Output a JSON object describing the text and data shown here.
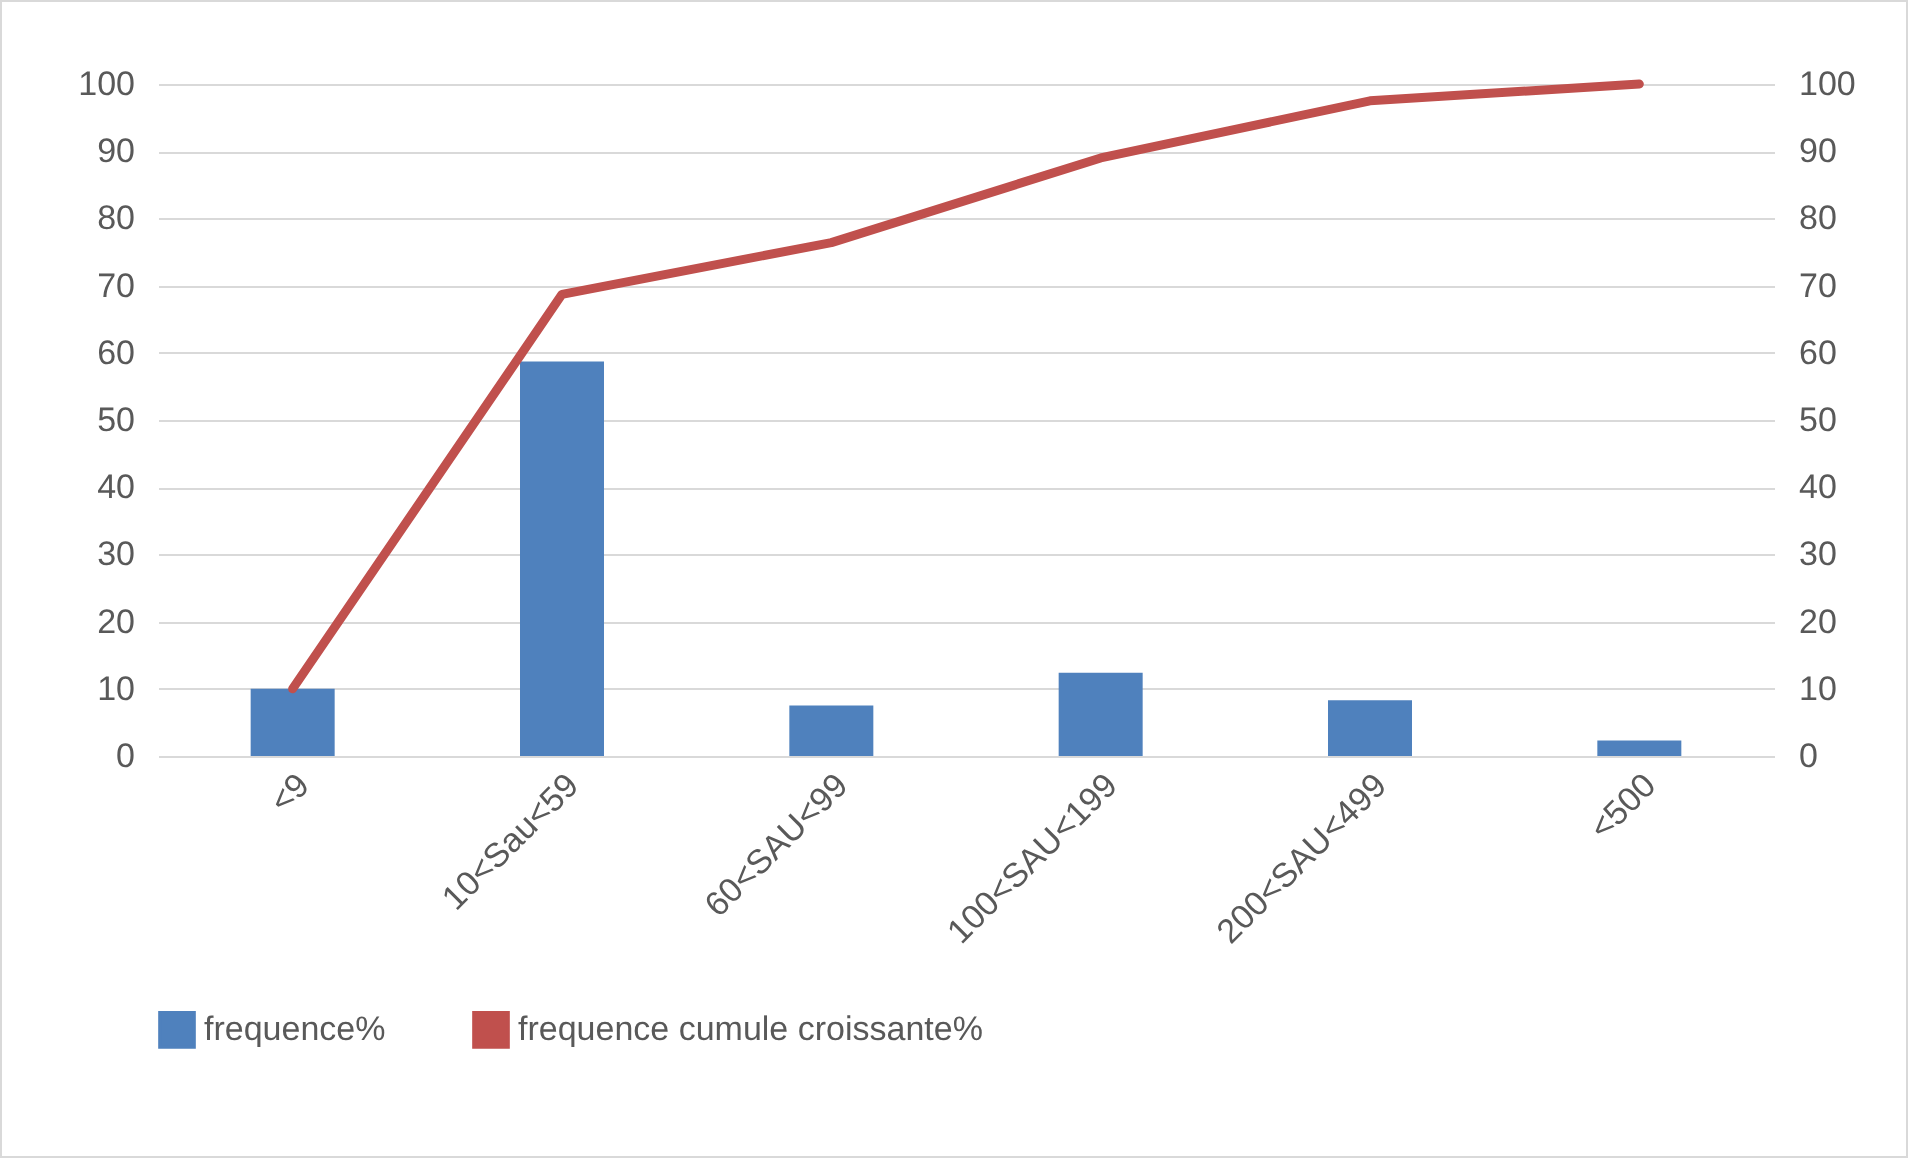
{
  "chart_data": {
    "type": "bar",
    "categories": [
      "<9",
      "10<Sau<59",
      "60<SAU<99",
      "100<SAU<199",
      "200<SAU<499",
      "<500"
    ],
    "series": [
      {
        "name": "frequence%",
        "color": "#4f81bd",
        "values": [
          10,
          58.7,
          7.5,
          12.4,
          8.3,
          2.3
        ]
      },
      {
        "name": "frequence cumule croissante%",
        "type": "line",
        "axis": "y2",
        "color": "#c0504d",
        "values": [
          10,
          68.7,
          76.4,
          89,
          97.5,
          100
        ]
      }
    ],
    "ylim": [
      0,
      100
    ],
    "yticks": [
      0,
      10,
      20,
      30,
      40,
      50,
      60,
      70,
      80,
      90,
      100
    ],
    "y2lim": [
      0,
      100
    ],
    "y2ticks": [
      0,
      10,
      20,
      30,
      40,
      50,
      60,
      70,
      80,
      90,
      100
    ],
    "grid": true,
    "legend": "bottom",
    "marker": "none",
    "line_style": "solid"
  }
}
